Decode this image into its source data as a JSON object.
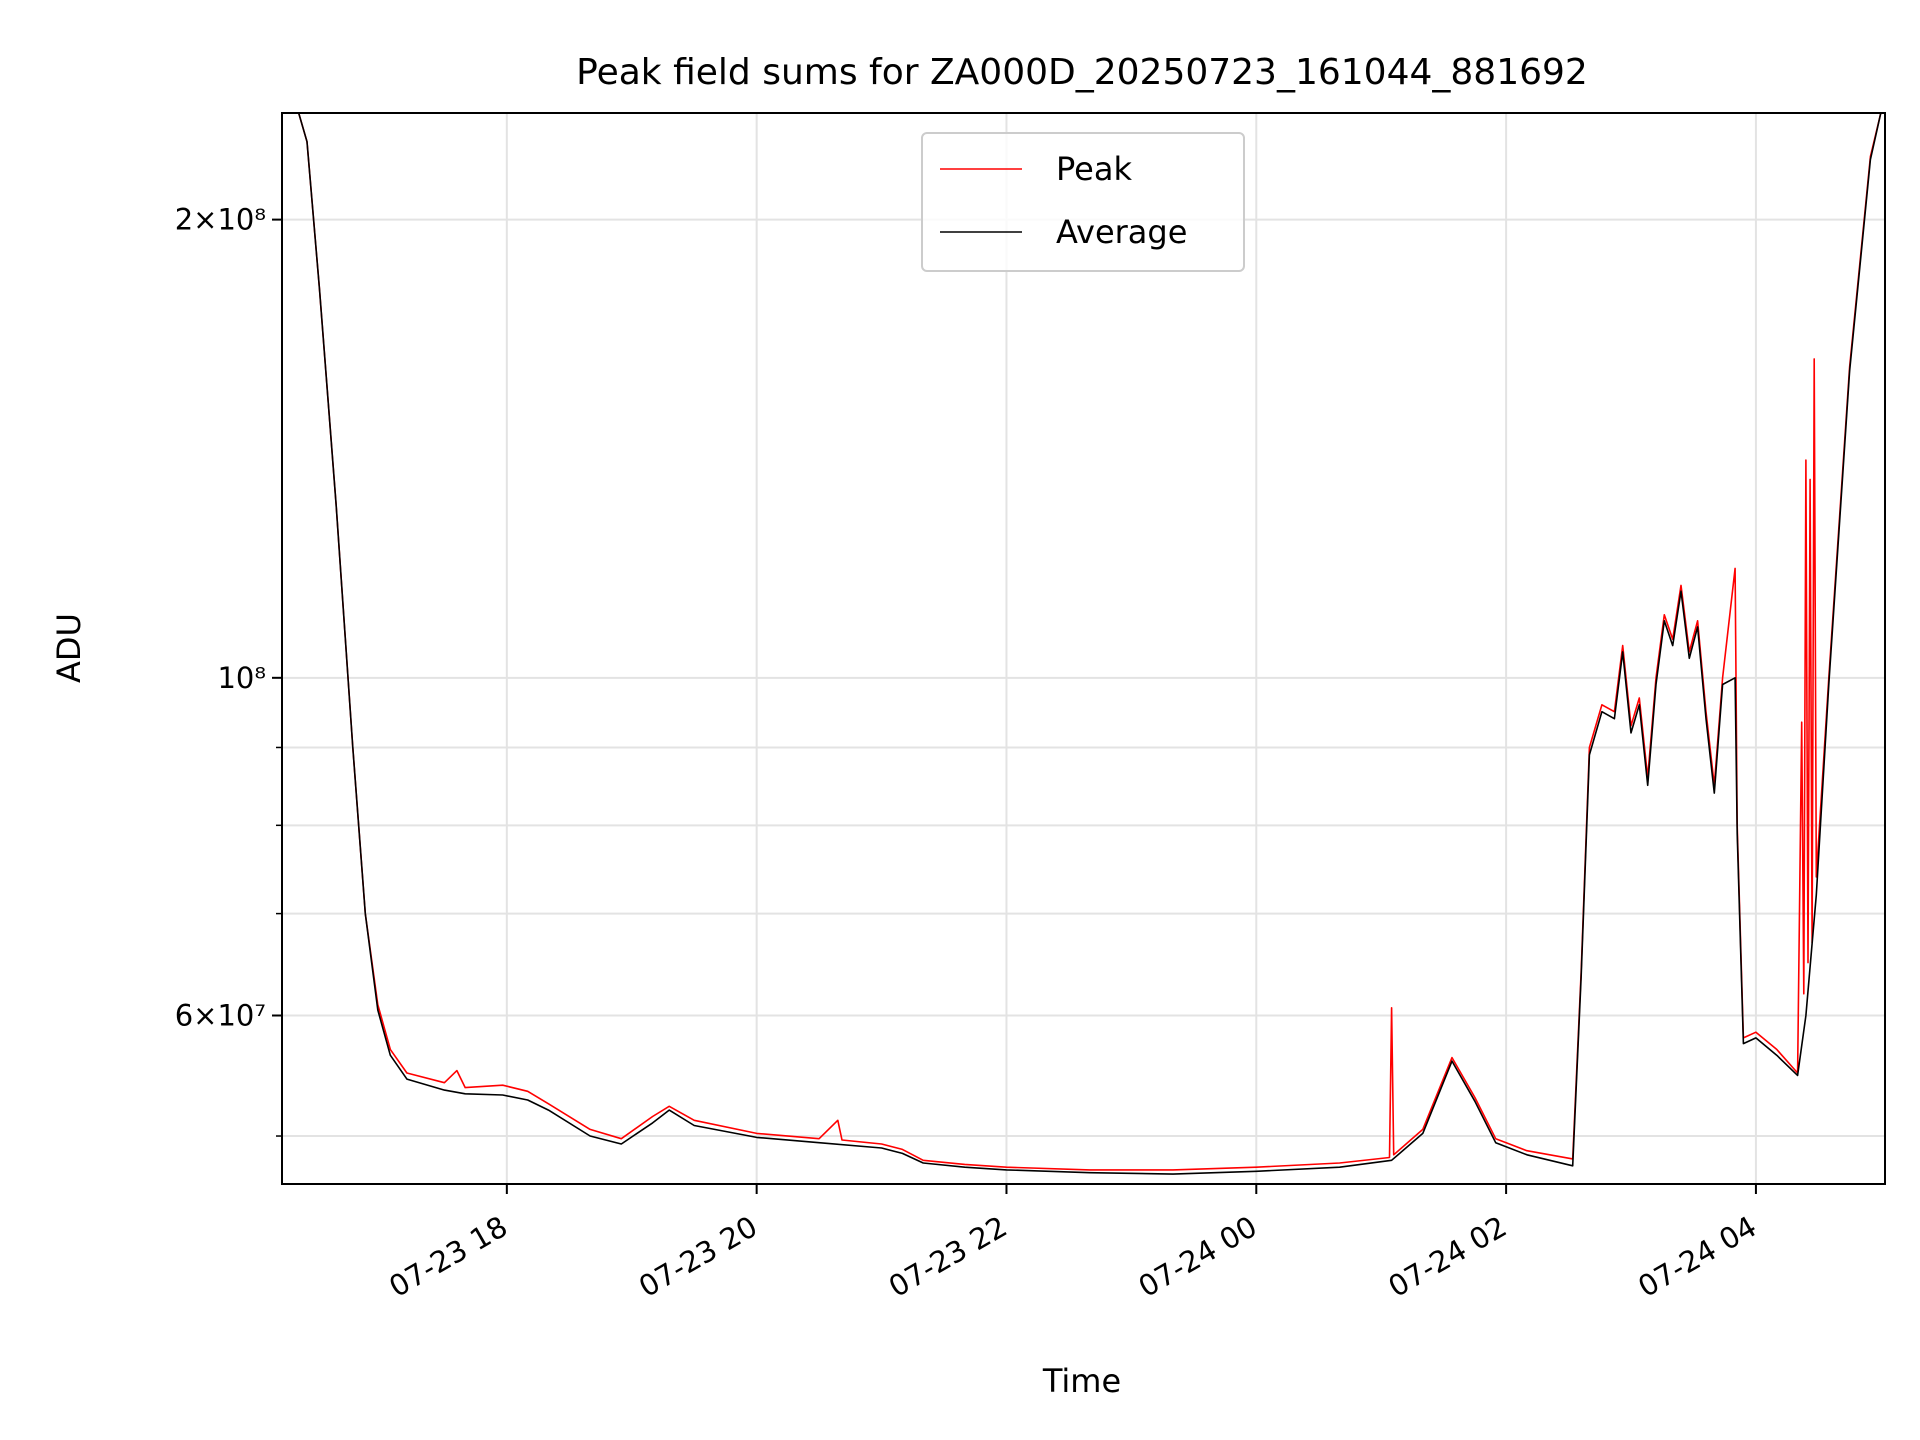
{
  "chart_data": {
    "type": "line",
    "title": "Peak field sums for ZA000D_20250723_161044_881692",
    "xlabel": "Time",
    "ylabel": "ADU",
    "y_scale": "log",
    "ylim": [
      46500000,
      235000000
    ],
    "xlim": [
      "2025-07-23 16:12",
      "2025-07-24 05:02"
    ],
    "grid": true,
    "legend_position": "upper center",
    "x_ticks": [
      {
        "value": "2025-07-23 18:00",
        "label": "07-23 18"
      },
      {
        "value": "2025-07-23 20:00",
        "label": "07-23 20"
      },
      {
        "value": "2025-07-23 22:00",
        "label": "07-23 22"
      },
      {
        "value": "2025-07-24 00:00",
        "label": "07-24 00"
      },
      {
        "value": "2025-07-24 02:00",
        "label": "07-24 02"
      },
      {
        "value": "2025-07-24 04:00",
        "label": "07-24 04"
      }
    ],
    "y_major_ticks": [
      {
        "value": 200000000,
        "label": "2×10⁸"
      },
      {
        "value": 100000000,
        "label": "10⁸"
      },
      {
        "value": 60000000,
        "label": "6×10⁷"
      }
    ],
    "y_minor_ticks": [
      50000000,
      70000000,
      80000000,
      90000000
    ],
    "series": [
      {
        "name": "Peak",
        "color": "#ff0000",
        "points": [
          [
            "2025-07-23 16:12",
            235000000
          ],
          [
            "2025-07-23 16:20",
            235000000
          ],
          [
            "2025-07-23 16:24",
            225000000
          ],
          [
            "2025-07-23 16:30",
            180000000
          ],
          [
            "2025-07-23 16:38",
            130000000
          ],
          [
            "2025-07-23 16:46",
            90000000
          ],
          [
            "2025-07-23 16:52",
            70000000
          ],
          [
            "2025-07-23 16:58",
            61000000
          ],
          [
            "2025-07-23 17:04",
            57000000
          ],
          [
            "2025-07-23 17:12",
            55000000
          ],
          [
            "2025-07-23 17:30",
            54200000
          ],
          [
            "2025-07-23 17:36",
            55200000
          ],
          [
            "2025-07-23 17:40",
            53800000
          ],
          [
            "2025-07-23 17:58",
            54000000
          ],
          [
            "2025-07-23 18:10",
            53500000
          ],
          [
            "2025-07-23 18:20",
            52500000
          ],
          [
            "2025-07-23 18:40",
            50500000
          ],
          [
            "2025-07-23 18:55",
            49800000
          ],
          [
            "2025-07-23 19:10",
            51500000
          ],
          [
            "2025-07-23 19:18",
            52300000
          ],
          [
            "2025-07-23 19:30",
            51200000
          ],
          [
            "2025-07-23 20:00",
            50200000
          ],
          [
            "2025-07-23 20:30",
            49800000
          ],
          [
            "2025-07-23 20:39",
            51200000
          ],
          [
            "2025-07-23 20:41",
            49700000
          ],
          [
            "2025-07-23 21:00",
            49400000
          ],
          [
            "2025-07-23 21:10",
            49000000
          ],
          [
            "2025-07-23 21:20",
            48200000
          ],
          [
            "2025-07-23 21:40",
            47900000
          ],
          [
            "2025-07-23 22:00",
            47700000
          ],
          [
            "2025-07-23 22:40",
            47500000
          ],
          [
            "2025-07-23 23:20",
            47500000
          ],
          [
            "2025-07-24 00:00",
            47700000
          ],
          [
            "2025-07-24 00:40",
            48000000
          ],
          [
            "2025-07-24 01:04",
            48400000
          ],
          [
            "2025-07-24 01:05",
            60700000
          ],
          [
            "2025-07-24 01:06",
            48600000
          ],
          [
            "2025-07-24 01:20",
            50500000
          ],
          [
            "2025-07-24 01:34",
            56300000
          ],
          [
            "2025-07-24 01:45",
            53000000
          ],
          [
            "2025-07-24 01:55",
            49800000
          ],
          [
            "2025-07-24 02:10",
            48900000
          ],
          [
            "2025-07-24 02:32",
            48300000
          ],
          [
            "2025-07-24 02:36",
            64000000
          ],
          [
            "2025-07-24 02:40",
            90000000
          ],
          [
            "2025-07-24 02:46",
            96000000
          ],
          [
            "2025-07-24 02:52",
            95000000
          ],
          [
            "2025-07-24 02:56",
            105000000
          ],
          [
            "2025-07-24 03:00",
            93000000
          ],
          [
            "2025-07-24 03:04",
            97000000
          ],
          [
            "2025-07-24 03:08",
            86000000
          ],
          [
            "2025-07-24 03:12",
            100000000
          ],
          [
            "2025-07-24 03:16",
            110000000
          ],
          [
            "2025-07-24 03:20",
            106000000
          ],
          [
            "2025-07-24 03:24",
            115000000
          ],
          [
            "2025-07-24 03:28",
            104000000
          ],
          [
            "2025-07-24 03:32",
            109000000
          ],
          [
            "2025-07-24 03:36",
            95000000
          ],
          [
            "2025-07-24 03:40",
            85000000
          ],
          [
            "2025-07-24 03:44",
            100000000
          ],
          [
            "2025-07-24 03:50",
            118000000
          ],
          [
            "2025-07-24 03:51",
            80000000
          ],
          [
            "2025-07-24 03:54",
            58000000
          ],
          [
            "2025-07-24 04:00",
            58500000
          ],
          [
            "2025-07-24 04:10",
            57000000
          ],
          [
            "2025-07-24 04:20",
            55000000
          ],
          [
            "2025-07-24 04:22",
            93500000
          ],
          [
            "2025-07-24 04:23",
            62000000
          ],
          [
            "2025-07-24 04:24",
            139000000
          ],
          [
            "2025-07-24 04:25",
            65000000
          ],
          [
            "2025-07-24 04:26",
            135000000
          ],
          [
            "2025-07-24 04:27",
            67000000
          ],
          [
            "2025-07-24 04:28",
            162000000
          ],
          [
            "2025-07-24 04:29",
            74000000
          ],
          [
            "2025-07-24 04:35",
            100000000
          ],
          [
            "2025-07-24 04:45",
            160000000
          ],
          [
            "2025-07-24 04:55",
            220000000
          ],
          [
            "2025-07-24 05:00",
            235000000
          ]
        ]
      },
      {
        "name": "Average",
        "color": "#000000",
        "points": [
          [
            "2025-07-23 16:12",
            235000000
          ],
          [
            "2025-07-23 16:20",
            235000000
          ],
          [
            "2025-07-23 16:24",
            225000000
          ],
          [
            "2025-07-23 16:30",
            180000000
          ],
          [
            "2025-07-23 16:38",
            130000000
          ],
          [
            "2025-07-23 16:46",
            90000000
          ],
          [
            "2025-07-23 16:52",
            70000000
          ],
          [
            "2025-07-23 16:58",
            60500000
          ],
          [
            "2025-07-23 17:04",
            56500000
          ],
          [
            "2025-07-23 17:12",
            54500000
          ],
          [
            "2025-07-23 17:30",
            53600000
          ],
          [
            "2025-07-23 17:40",
            53300000
          ],
          [
            "2025-07-23 17:58",
            53200000
          ],
          [
            "2025-07-23 18:10",
            52800000
          ],
          [
            "2025-07-23 18:20",
            52000000
          ],
          [
            "2025-07-23 18:40",
            50000000
          ],
          [
            "2025-07-23 18:55",
            49400000
          ],
          [
            "2025-07-23 19:10",
            51000000
          ],
          [
            "2025-07-23 19:18",
            52000000
          ],
          [
            "2025-07-23 19:30",
            50800000
          ],
          [
            "2025-07-23 20:00",
            49900000
          ],
          [
            "2025-07-23 20:30",
            49500000
          ],
          [
            "2025-07-23 21:00",
            49100000
          ],
          [
            "2025-07-23 21:10",
            48700000
          ],
          [
            "2025-07-23 21:20",
            48000000
          ],
          [
            "2025-07-23 21:40",
            47700000
          ],
          [
            "2025-07-23 22:00",
            47500000
          ],
          [
            "2025-07-23 22:40",
            47300000
          ],
          [
            "2025-07-23 23:20",
            47200000
          ],
          [
            "2025-07-24 00:00",
            47400000
          ],
          [
            "2025-07-24 00:40",
            47700000
          ],
          [
            "2025-07-24 01:05",
            48200000
          ],
          [
            "2025-07-24 01:20",
            50200000
          ],
          [
            "2025-07-24 01:34",
            56000000
          ],
          [
            "2025-07-24 01:45",
            52700000
          ],
          [
            "2025-07-24 01:55",
            49500000
          ],
          [
            "2025-07-24 02:10",
            48600000
          ],
          [
            "2025-07-24 02:32",
            47800000
          ],
          [
            "2025-07-24 02:36",
            63500000
          ],
          [
            "2025-07-24 02:40",
            89000000
          ],
          [
            "2025-07-24 02:46",
            95000000
          ],
          [
            "2025-07-24 02:52",
            94000000
          ],
          [
            "2025-07-24 02:56",
            104000000
          ],
          [
            "2025-07-24 03:00",
            92000000
          ],
          [
            "2025-07-24 03:04",
            96000000
          ],
          [
            "2025-07-24 03:08",
            85000000
          ],
          [
            "2025-07-24 03:12",
            99000000
          ],
          [
            "2025-07-24 03:16",
            109000000
          ],
          [
            "2025-07-24 03:20",
            105000000
          ],
          [
            "2025-07-24 03:24",
            114000000
          ],
          [
            "2025-07-24 03:28",
            103000000
          ],
          [
            "2025-07-24 03:32",
            108000000
          ],
          [
            "2025-07-24 03:36",
            94000000
          ],
          [
            "2025-07-24 03:40",
            84000000
          ],
          [
            "2025-07-24 03:44",
            99000000
          ],
          [
            "2025-07-24 03:50",
            100000000
          ],
          [
            "2025-07-24 03:51",
            79000000
          ],
          [
            "2025-07-24 03:54",
            57500000
          ],
          [
            "2025-07-24 04:00",
            58000000
          ],
          [
            "2025-07-24 04:10",
            56500000
          ],
          [
            "2025-07-24 04:20",
            54800000
          ],
          [
            "2025-07-24 04:24",
            60000000
          ],
          [
            "2025-07-24 04:29",
            72000000
          ],
          [
            "2025-07-24 04:35",
            99000000
          ],
          [
            "2025-07-24 04:45",
            159000000
          ],
          [
            "2025-07-24 04:55",
            219000000
          ],
          [
            "2025-07-24 05:00",
            235000000
          ]
        ]
      }
    ]
  }
}
